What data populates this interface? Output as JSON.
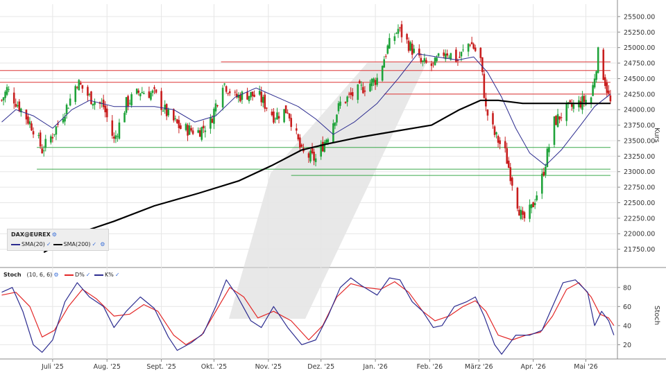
{
  "chart_data": [
    {
      "type": "candlestick",
      "instrument": "DAX@EUREX",
      "indicators": [
        "SMA(20)",
        "SMA(200)"
      ],
      "ylabel": "Kurs",
      "ylim": [
        21500,
        25700
      ],
      "yticks": [
        "25500.00",
        "25250.00",
        "25000.00",
        "24750.00",
        "24500.00",
        "24250.00",
        "24000.00",
        "23750.00",
        "23500.00",
        "23250.00",
        "23000.00",
        "22750.00",
        "22500.00",
        "22250.00",
        "22000.00",
        "21750.00"
      ],
      "x_months": [
        "Juli '25",
        "Aug. '25",
        "Sept. '25",
        "Okt. '25",
        "Nov. '25",
        "Dez. '25",
        "Jan. '26",
        "Feb. '26",
        "März '26",
        "Apr. '26",
        "Mai '26"
      ],
      "close_path": [
        [
          "2025-06-02",
          24150
        ],
        [
          "2025-06-05",
          24330
        ],
        [
          "2025-06-12",
          24050
        ],
        [
          "2025-06-20",
          23700
        ],
        [
          "2025-06-25",
          23350
        ],
        [
          "2025-07-01",
          23600
        ],
        [
          "2025-07-10",
          24100
        ],
        [
          "2025-07-15",
          24450
        ],
        [
          "2025-07-22",
          24200
        ],
        [
          "2025-07-30",
          24050
        ],
        [
          "2025-08-05",
          23500
        ],
        [
          "2025-08-12",
          24100
        ],
        [
          "2025-08-20",
          24300
        ],
        [
          "2025-08-28",
          24250
        ],
        [
          "2025-09-05",
          23900
        ],
        [
          "2025-09-12",
          23700
        ],
        [
          "2025-09-22",
          23650
        ],
        [
          "2025-09-29",
          23800
        ],
        [
          "2025-10-06",
          24450
        ],
        [
          "2025-10-13",
          24200
        ],
        [
          "2025-10-20",
          24250
        ],
        [
          "2025-10-27",
          24200
        ],
        [
          "2025-11-04",
          23900
        ],
        [
          "2025-11-12",
          24000
        ],
        [
          "2025-11-20",
          23300
        ],
        [
          "2025-11-28",
          23200
        ],
        [
          "2025-12-05",
          23600
        ],
        [
          "2025-12-12",
          24100
        ],
        [
          "2025-12-22",
          24300
        ],
        [
          "2026-01-02",
          24500
        ],
        [
          "2026-01-08",
          25000
        ],
        [
          "2026-01-14",
          25300
        ],
        [
          "2026-01-20",
          25050
        ],
        [
          "2026-01-27",
          24750
        ],
        [
          "2026-02-03",
          24700
        ],
        [
          "2026-02-10",
          24950
        ],
        [
          "2026-02-17",
          24800
        ],
        [
          "2026-02-24",
          25100
        ],
        [
          "2026-03-02",
          24800
        ],
        [
          "2026-03-05",
          24000
        ],
        [
          "2026-03-10",
          23600
        ],
        [
          "2026-03-16",
          23300
        ],
        [
          "2026-03-23",
          22500
        ],
        [
          "2026-03-26",
          22200
        ],
        [
          "2026-03-31",
          22400
        ],
        [
          "2026-04-06",
          22900
        ],
        [
          "2026-04-13",
          23800
        ],
        [
          "2026-04-20",
          24000
        ],
        [
          "2026-04-27",
          24100
        ],
        [
          "2026-05-04",
          24200
        ],
        [
          "2026-05-08",
          24900
        ],
        [
          "2026-05-12",
          24450
        ],
        [
          "2026-05-15",
          24100
        ]
      ],
      "sma20": [
        [
          "2025-06-02",
          23800
        ],
        [
          "2025-06-10",
          24000
        ],
        [
          "2025-06-20",
          23900
        ],
        [
          "2025-07-01",
          23700
        ],
        [
          "2025-07-12",
          24000
        ],
        [
          "2025-07-22",
          24150
        ],
        [
          "2025-08-05",
          24050
        ],
        [
          "2025-08-18",
          24050
        ],
        [
          "2025-08-28",
          24050
        ],
        [
          "2025-09-08",
          24000
        ],
        [
          "2025-09-20",
          23800
        ],
        [
          "2025-10-02",
          23900
        ],
        [
          "2025-10-13",
          24200
        ],
        [
          "2025-10-25",
          24350
        ],
        [
          "2025-11-06",
          24200
        ],
        [
          "2025-11-18",
          24050
        ],
        [
          "2025-11-28",
          23850
        ],
        [
          "2025-12-08",
          23600
        ],
        [
          "2025-12-20",
          23800
        ],
        [
          "2026-01-02",
          24100
        ],
        [
          "2026-01-14",
          24500
        ],
        [
          "2026-01-25",
          24900
        ],
        [
          "2026-02-05",
          24850
        ],
        [
          "2026-02-17",
          24800
        ],
        [
          "2026-02-26",
          24850
        ],
        [
          "2026-03-06",
          24600
        ],
        [
          "2026-03-14",
          24200
        ],
        [
          "2026-03-22",
          23700
        ],
        [
          "2026-03-30",
          23300
        ],
        [
          "2026-04-08",
          23100
        ],
        [
          "2026-04-17",
          23350
        ],
        [
          "2026-04-28",
          23750
        ],
        [
          "2026-05-06",
          24050
        ],
        [
          "2026-05-15",
          24250
        ]
      ],
      "sma200": [
        [
          "2025-06-26",
          21700
        ],
        [
          "2025-07-15",
          22000
        ],
        [
          "2025-08-05",
          22200
        ],
        [
          "2025-08-28",
          22450
        ],
        [
          "2025-09-22",
          22650
        ],
        [
          "2025-10-15",
          22850
        ],
        [
          "2025-11-03",
          23100
        ],
        [
          "2025-11-20",
          23350
        ],
        [
          "2025-12-05",
          23450
        ],
        [
          "2025-12-22",
          23550
        ],
        [
          "2026-01-12",
          23650
        ],
        [
          "2026-02-02",
          23750
        ],
        [
          "2026-02-18",
          24000
        ],
        [
          "2026-03-02",
          24150
        ],
        [
          "2026-03-12",
          24150
        ],
        [
          "2026-03-26",
          24100
        ],
        [
          "2026-04-08",
          24100
        ],
        [
          "2026-04-28",
          24100
        ],
        [
          "2026-05-15",
          24100
        ]
      ],
      "hlines": [
        {
          "y": 24770,
          "color": "red",
          "from": "2025-10-05"
        },
        {
          "y": 24630,
          "color": "red",
          "from": "2025-06-01"
        },
        {
          "y": 24440,
          "color": "red",
          "from": "2025-06-01"
        },
        {
          "y": 24250,
          "color": "red",
          "from": "2026-01-06"
        },
        {
          "y": 23390,
          "color": "green",
          "from": "2025-06-22"
        },
        {
          "y": 23040,
          "color": "green",
          "from": "2025-06-22"
        },
        {
          "y": 22940,
          "color": "green",
          "from": "2025-11-14"
        }
      ]
    },
    {
      "type": "line",
      "indicator": "Stoch",
      "params": "(10, 6, 6)",
      "series": [
        {
          "name": "D%",
          "color": "#e32626"
        },
        {
          "name": "K%",
          "color": "#2b2b8f"
        }
      ],
      "ylabel": "Stoch",
      "ylim": [
        5,
        98
      ],
      "yticks": [
        "80",
        "60",
        "40",
        "20"
      ],
      "k_points": [
        [
          "2025-06-02",
          75
        ],
        [
          "2025-06-08",
          80
        ],
        [
          "2025-06-14",
          55
        ],
        [
          "2025-06-20",
          20
        ],
        [
          "2025-06-25",
          12
        ],
        [
          "2025-07-01",
          25
        ],
        [
          "2025-07-08",
          65
        ],
        [
          "2025-07-15",
          85
        ],
        [
          "2025-07-22",
          70
        ],
        [
          "2025-07-30",
          60
        ],
        [
          "2025-08-05",
          38
        ],
        [
          "2025-08-12",
          55
        ],
        [
          "2025-08-20",
          70
        ],
        [
          "2025-08-28",
          58
        ],
        [
          "2025-09-05",
          28
        ],
        [
          "2025-09-10",
          14
        ],
        [
          "2025-09-18",
          22
        ],
        [
          "2025-09-25",
          32
        ],
        [
          "2025-10-02",
          60
        ],
        [
          "2025-10-08",
          88
        ],
        [
          "2025-10-14",
          72
        ],
        [
          "2025-10-22",
          45
        ],
        [
          "2025-10-28",
          38
        ],
        [
          "2025-11-04",
          60
        ],
        [
          "2025-11-12",
          38
        ],
        [
          "2025-11-20",
          20
        ],
        [
          "2025-11-28",
          25
        ],
        [
          "2025-12-05",
          50
        ],
        [
          "2025-12-12",
          80
        ],
        [
          "2025-12-18",
          90
        ],
        [
          "2025-12-24",
          82
        ],
        [
          "2026-01-02",
          72
        ],
        [
          "2026-01-09",
          90
        ],
        [
          "2026-01-15",
          88
        ],
        [
          "2026-01-22",
          65
        ],
        [
          "2026-01-28",
          55
        ],
        [
          "2026-02-03",
          38
        ],
        [
          "2026-02-08",
          40
        ],
        [
          "2026-02-15",
          60
        ],
        [
          "2026-02-22",
          65
        ],
        [
          "2026-02-27",
          70
        ],
        [
          "2026-03-04",
          50
        ],
        [
          "2026-03-10",
          20
        ],
        [
          "2026-03-14",
          10
        ],
        [
          "2026-03-22",
          30
        ],
        [
          "2026-03-30",
          30
        ],
        [
          "2026-04-06",
          35
        ],
        [
          "2026-04-12",
          60
        ],
        [
          "2026-04-18",
          85
        ],
        [
          "2026-04-25",
          88
        ],
        [
          "2026-05-02",
          75
        ],
        [
          "2026-05-06",
          40
        ],
        [
          "2026-05-10",
          55
        ],
        [
          "2026-05-14",
          45
        ],
        [
          "2026-05-17",
          30
        ]
      ],
      "d_points": [
        [
          "2025-06-02",
          72
        ],
        [
          "2025-06-10",
          75
        ],
        [
          "2025-06-18",
          60
        ],
        [
          "2025-06-25",
          28
        ],
        [
          "2025-07-02",
          35
        ],
        [
          "2025-07-10",
          60
        ],
        [
          "2025-07-18",
          78
        ],
        [
          "2025-07-26",
          68
        ],
        [
          "2025-08-05",
          50
        ],
        [
          "2025-08-14",
          52
        ],
        [
          "2025-08-22",
          62
        ],
        [
          "2025-08-30",
          55
        ],
        [
          "2025-09-08",
          30
        ],
        [
          "2025-09-15",
          20
        ],
        [
          "2025-09-24",
          30
        ],
        [
          "2025-10-02",
          55
        ],
        [
          "2025-10-10",
          80
        ],
        [
          "2025-10-18",
          70
        ],
        [
          "2025-10-26",
          48
        ],
        [
          "2025-11-04",
          55
        ],
        [
          "2025-11-14",
          45
        ],
        [
          "2025-11-24",
          25
        ],
        [
          "2025-12-02",
          40
        ],
        [
          "2025-12-10",
          70
        ],
        [
          "2025-12-18",
          84
        ],
        [
          "2025-12-26",
          80
        ],
        [
          "2026-01-04",
          78
        ],
        [
          "2026-01-12",
          86
        ],
        [
          "2026-01-20",
          75
        ],
        [
          "2026-01-28",
          55
        ],
        [
          "2026-02-04",
          45
        ],
        [
          "2026-02-12",
          50
        ],
        [
          "2026-02-20",
          60
        ],
        [
          "2026-02-27",
          66
        ],
        [
          "2026-03-05",
          55
        ],
        [
          "2026-03-12",
          30
        ],
        [
          "2026-03-20",
          25
        ],
        [
          "2026-03-28",
          30
        ],
        [
          "2026-04-05",
          33
        ],
        [
          "2026-04-12",
          50
        ],
        [
          "2026-04-20",
          78
        ],
        [
          "2026-04-27",
          85
        ],
        [
          "2026-05-04",
          70
        ],
        [
          "2026-05-09",
          52
        ],
        [
          "2026-05-14",
          48
        ],
        [
          "2026-05-17",
          40
        ]
      ]
    }
  ]
}
